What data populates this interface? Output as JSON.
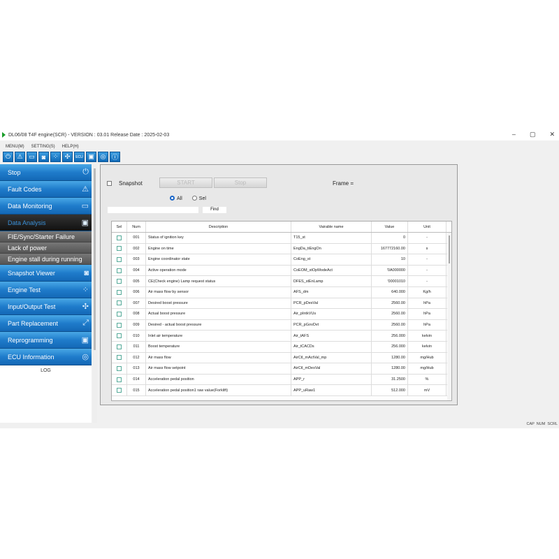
{
  "window": {
    "title": "DL06/08 T4F engine(SCR) - VERSION : 03.01 Release Date : 2025-02-03",
    "controls": [
      "–",
      "▢",
      "✕"
    ]
  },
  "menu": [
    "MENU(M)",
    "SETTING(S)",
    "HELP(H)"
  ],
  "toolbar": [
    {
      "icon": "power-icon",
      "glyph": "⏻"
    },
    {
      "icon": "warning-icon",
      "glyph": "⚠"
    },
    {
      "icon": "monitor-icon",
      "glyph": "▭"
    },
    {
      "icon": "camera-icon",
      "glyph": "◙"
    },
    {
      "icon": "engine-test-icon",
      "glyph": "⁘"
    },
    {
      "icon": "io-test-icon",
      "glyph": "✣"
    },
    {
      "icon": "ecu-icon",
      "glyph": "ECU"
    },
    {
      "icon": "reprogram-icon",
      "glyph": "▣"
    },
    {
      "icon": "ecu-info-icon",
      "glyph": "◎"
    },
    {
      "icon": "info-icon",
      "glyph": "ⓘ"
    }
  ],
  "sidebar": {
    "items": [
      {
        "label": "Stop",
        "icon": "⏻"
      },
      {
        "label": "Fault Codes",
        "icon": "⚠"
      },
      {
        "label": "Data Monitoring",
        "icon": "▭"
      },
      {
        "label": "Data Analysis",
        "icon": "▣"
      },
      {
        "label": "Snapshot Viewer",
        "icon": "◙"
      },
      {
        "label": "Engine Test",
        "icon": "⁘"
      },
      {
        "label": "Input/Output Test",
        "icon": "✣"
      },
      {
        "label": "Part Replacement",
        "icon": "⤢"
      },
      {
        "label": "Reprogramming",
        "icon": "▣"
      },
      {
        "label": "ECU Information",
        "icon": "◎"
      }
    ],
    "subitems": [
      "FIE/Sync/Starter Failure",
      "Lack of power",
      "Engine stall during running"
    ],
    "log": "LOG"
  },
  "controls": {
    "snapshot": "Snapshot",
    "start": "START",
    "stop": "Stop",
    "frame": "Frame =",
    "radio_all": "All",
    "radio_sel": "Sel",
    "search_value": "",
    "find": "Find"
  },
  "table": {
    "headers": [
      "Sel",
      "Num",
      "Description",
      "Vairable name",
      "Value",
      "Unit"
    ],
    "rows": [
      [
        "001",
        "Status of ignition key",
        "T15_st",
        "0",
        "-"
      ],
      [
        "002",
        "Engine on time",
        "EngDa_tiEngOn",
        "167772160.00",
        "s"
      ],
      [
        "003",
        "Engine coordinator state",
        "CoEng_st",
        "10",
        "-"
      ],
      [
        "004",
        "Active operation mode",
        "CoEOM_stOpModeAct",
        "'0A000000",
        "-"
      ],
      [
        "005",
        "CE(Check engine) Lamp request status",
        "DFES_stEnLamp",
        "'00001010",
        "-"
      ],
      [
        "006",
        "Air mass flow by sensor",
        "AFS_dm",
        "640.000",
        "Kg/h"
      ],
      [
        "007",
        "Desired boost pressure",
        "PCR_pDesVal",
        "2560.00",
        "hPa"
      ],
      [
        "008",
        "Actual boost pressure",
        "Air_pIntkVUs",
        "2560.00",
        "hPa"
      ],
      [
        "009",
        "Desired - actual boost pressure",
        "PCR_pGovDvt",
        "2560.00",
        "hPa"
      ],
      [
        "010",
        "Inlet air temperature",
        "Air_tAFS",
        "256.000",
        "kelvin"
      ],
      [
        "011",
        "Boost temperature",
        "Air_tCACDs",
        "256.000",
        "kelvin"
      ],
      [
        "012",
        "Air mass flow",
        "AirCtl_mActVal_mp",
        "1280.00",
        "mg/Hub"
      ],
      [
        "013",
        "Air mass flow setpoint",
        "AirCtl_mDesVal",
        "1280.00",
        "mg/Hub"
      ],
      [
        "014",
        "Acceleration pedal position",
        "APP_r",
        "31.2500",
        "%"
      ],
      [
        "015",
        "Acceleration pedal position1 raw value(Forklift)",
        "APP_uRaw1",
        "512.000",
        "mV"
      ]
    ]
  },
  "status": [
    "CAP",
    "NUM",
    "SCRL"
  ],
  "colors": {
    "sidebar_blue": "#1f7ccb",
    "active_dark": "#111111",
    "start_icon": "#1a9d2a"
  }
}
